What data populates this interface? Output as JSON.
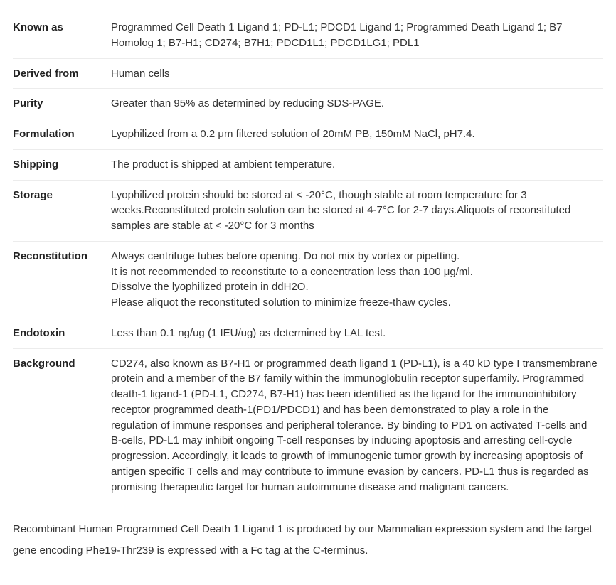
{
  "colors": {
    "text": "#333333",
    "label": "#222222",
    "border": "#ececec",
    "background": "#ffffff"
  },
  "typography": {
    "base_fontsize_pt": 11,
    "label_weight": 700,
    "font_family": "Segoe UI"
  },
  "rows": {
    "known_as": {
      "label": "Known as",
      "value": "Programmed Cell Death 1 Ligand 1; PD-L1; PDCD1 Ligand 1; Programmed Death Ligand 1; B7 Homolog 1; B7-H1; CD274; B7H1; PDCD1L1; PDCD1LG1; PDL1"
    },
    "derived_from": {
      "label": "Derived from",
      "value": "Human cells"
    },
    "purity": {
      "label": "Purity",
      "value": "Greater than 95% as determined by reducing SDS-PAGE."
    },
    "formulation": {
      "label": "Formulation",
      "value": "Lyophilized from a 0.2 μm filtered solution of 20mM PB, 150mM NaCl, pH7.4."
    },
    "shipping": {
      "label": "Shipping",
      "value": "The product is shipped at ambient temperature."
    },
    "storage": {
      "label": "Storage",
      "value": "Lyophilized protein should be stored at < -20°C, though stable at room temperature for 3 weeks.Reconstituted protein solution can be stored at 4-7°C for 2-7 days.Aliquots of reconstituted samples are stable at < -20°C for 3 months"
    },
    "reconstitution": {
      "label": "Reconstitution",
      "value": "Always centrifuge tubes before opening. Do not mix by vortex or pipetting.\nIt is not recommended to reconstitute to a concentration less than 100 μg/ml.\nDissolve the lyophilized protein in ddH2O.\nPlease aliquot the reconstituted solution to minimize freeze-thaw cycles."
    },
    "endotoxin": {
      "label": "Endotoxin",
      "value": "Less than 0.1 ng/ug (1 IEU/ug) as determined by LAL test."
    },
    "background": {
      "label": "Background",
      "value": "CD274, also known as B7-H1 or programmed death ligand 1 (PD-L1), is a 40 kD type I transmembrane protein and a member of the B7 family within the immunoglobulin receptor superfamily. Programmed death-1 ligand-1 (PD-L1, CD274, B7-H1) has been identified as the ligand for the immunoinhibitory receptor programmed death-1(PD1/PDCD1) and has been demonstrated to play a role in the regulation of immune responses and peripheral tolerance. By binding to PD1 on activated T-cells and B-cells, PD-L1 may inhibit ongoing T-cell responses by inducing apoptosis and arresting cell-cycle progression. Accordingly, it leads to growth of immunogenic tumor growth by increasing apoptosis of antigen specific T cells and may contribute to immune evasion by cancers. PD-L1 thus is regarded as promising therapeutic target for human autoimmune disease and malignant cancers."
    }
  },
  "description": "Recombinant Human Programmed Cell Death 1 Ligand 1 is produced by our Mammalian expression system and the target gene encoding Phe19-Thr239 is expressed with a Fc tag at the C-terminus."
}
